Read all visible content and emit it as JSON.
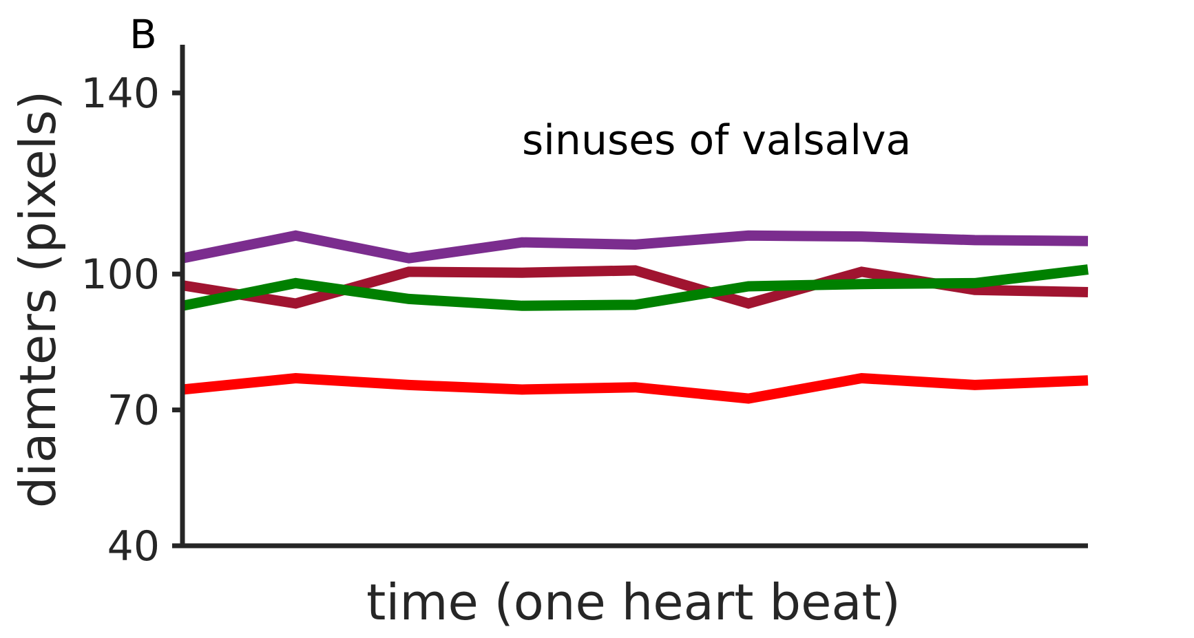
{
  "chart_data": {
    "type": "line",
    "panel_label": "B",
    "annotation": "sinuses of valsalva",
    "xlabel": "time (one heart beat)",
    "ylabel": "diamters (pixels)",
    "x": [
      1,
      2,
      3,
      4,
      5,
      6,
      7,
      8,
      9
    ],
    "ylim": [
      40,
      150
    ],
    "yticks": [
      40,
      70,
      100,
      140
    ],
    "grid": false,
    "series": [
      {
        "color": "#7b2d8e",
        "values": [
          103.5,
          108.5,
          103.5,
          107,
          106.5,
          108.5,
          108.3,
          107.5,
          107.3
        ]
      },
      {
        "color": "#a01430",
        "values": [
          97.5,
          93.5,
          100.5,
          100.3,
          100.8,
          93.5,
          100.5,
          96.5,
          96
        ]
      },
      {
        "color": "#008000",
        "values": [
          93,
          98,
          94.5,
          93,
          93.2,
          97.3,
          97.8,
          98,
          101
        ]
      },
      {
        "color": "#ff0000",
        "values": [
          74.5,
          77,
          75.5,
          74.5,
          75,
          72.5,
          77,
          75.5,
          76.5
        ]
      }
    ]
  }
}
